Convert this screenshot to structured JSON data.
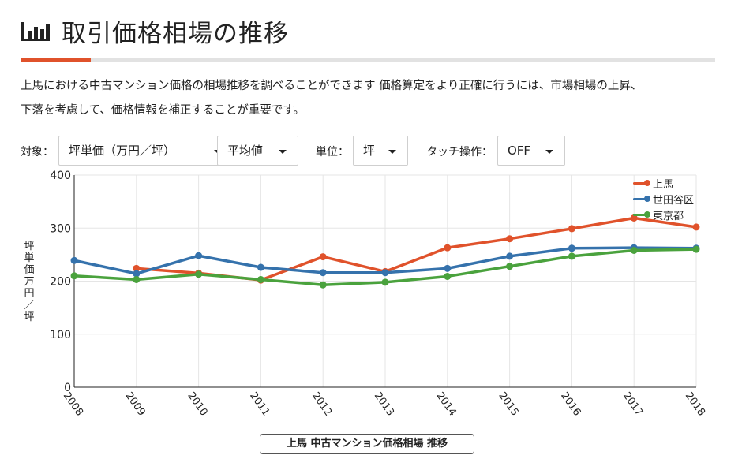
{
  "header": {
    "icon": "bar-chart-icon",
    "title": "取引価格相場の推移"
  },
  "description": {
    "line1": "上馬における中古マンション価格の相場推移を調べることができます 価格算定をより正確に行うには、市場相場の上昇、",
    "line2": "下落を考慮して、価格情報を補正することが重要です。"
  },
  "controls": {
    "target_label": "対象：",
    "target_value": "坪単価（万円／坪）",
    "stat_value": "平均値",
    "unit_label": "単位：",
    "unit_value": "坪",
    "touch_label": "タッチ操作：",
    "touch_value": "OFF"
  },
  "colors": {
    "accent": "#e0522b",
    "kamiuma": "#e0522b",
    "setagaya": "#3572ac",
    "tokyo": "#4aa23d",
    "grid": "#e5e5e5"
  },
  "chart_data": {
    "type": "line",
    "title": "上馬 中古マンション価格相場 推移",
    "xlabel": "",
    "ylabel": "坪単価　万円／坪",
    "ylim": [
      0,
      400
    ],
    "yticks": [
      0,
      100,
      200,
      300,
      400
    ],
    "categories": [
      "2008",
      "2009",
      "2010",
      "2011",
      "2012",
      "2013",
      "2014",
      "2015",
      "2016",
      "2017",
      "2018"
    ],
    "legend_position": "top-right",
    "series": [
      {
        "name": "上馬",
        "color": "#e0522b",
        "values": [
          null,
          224,
          215,
          202,
          246,
          218,
          263,
          280,
          299,
          319,
          302
        ]
      },
      {
        "name": "世田谷区",
        "color": "#3572ac",
        "values": [
          239,
          214,
          248,
          226,
          216,
          216,
          224,
          247,
          262,
          263,
          262
        ]
      },
      {
        "name": "東京都",
        "color": "#4aa23d",
        "values": [
          210,
          203,
          213,
          203,
          193,
          198,
          209,
          228,
          247,
          258,
          260
        ]
      }
    ]
  }
}
